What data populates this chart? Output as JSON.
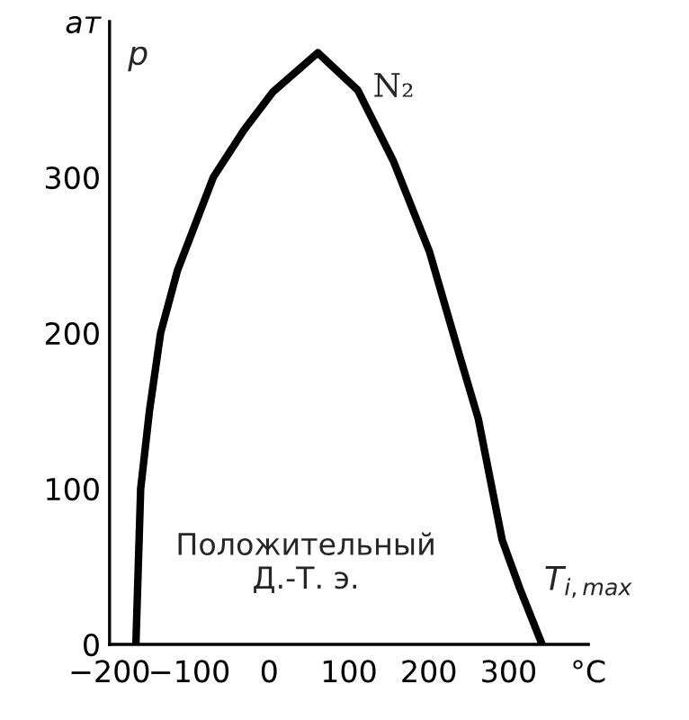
{
  "chart_data": {
    "type": "line",
    "xlabel": "T$_{i,max}$",
    "ylabel": "p",
    "x": [
      -167,
      -164,
      -161,
      -150,
      -136,
      -115,
      -70,
      -32,
      5,
      61,
      111,
      156,
      201,
      240,
      262,
      292,
      314,
      342
    ],
    "series": [
      {
        "name": "N₂",
        "color": "#000000",
        "values": [
          0,
          50,
          100,
          150,
          200,
          240,
          300,
          330,
          355,
          380,
          356,
          310,
          252,
          183,
          145,
          67,
          36,
          0
        ]
      }
    ],
    "xlim": [
      -200,
      400
    ],
    "xticks": [
      -200,
      -100,
      0,
      100,
      200,
      300,
      {
        "value": 400,
        "label": "°C"
      }
    ],
    "ylim": [
      0,
      400
    ],
    "yticks": [
      0,
      100,
      200,
      300,
      {
        "value": 400,
        "label": "ат"
      }
    ],
    "grid": false,
    "legend": false,
    "marker": "none",
    "line_style": "solid",
    "annotations": [
      "Положительный\nД.-Т. э."
    ]
  }
}
